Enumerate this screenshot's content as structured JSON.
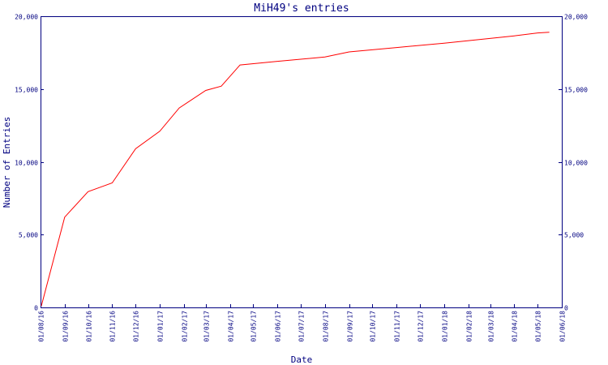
{
  "chart_data": {
    "type": "line",
    "title": "MiH49's entries",
    "xlabel": "Date",
    "ylabel": "Number of Entries",
    "ylim": [
      0,
      20000
    ],
    "xlim": [
      "2016-08-01",
      "2018-06-01"
    ],
    "grid": false,
    "y_ticks": [
      {
        "value": 0,
        "label": "0"
      },
      {
        "value": 5000,
        "label": "5,000"
      },
      {
        "value": 10000,
        "label": "10,000"
      },
      {
        "value": 15000,
        "label": "15,000"
      },
      {
        "value": 20000,
        "label": "20,000"
      }
    ],
    "x_ticks": [
      {
        "date": "2016-08-01",
        "label": "01/08/16"
      },
      {
        "date": "2016-09-01",
        "label": "01/09/16"
      },
      {
        "date": "2016-10-01",
        "label": "01/10/16"
      },
      {
        "date": "2016-11-01",
        "label": "01/11/16"
      },
      {
        "date": "2016-12-01",
        "label": "01/12/16"
      },
      {
        "date": "2017-01-01",
        "label": "01/01/17"
      },
      {
        "date": "2017-02-01",
        "label": "01/02/17"
      },
      {
        "date": "2017-03-01",
        "label": "01/03/17"
      },
      {
        "date": "2017-04-01",
        "label": "01/04/17"
      },
      {
        "date": "2017-05-01",
        "label": "01/05/17"
      },
      {
        "date": "2017-06-01",
        "label": "01/06/17"
      },
      {
        "date": "2017-07-01",
        "label": "01/07/17"
      },
      {
        "date": "2017-08-01",
        "label": "01/08/17"
      },
      {
        "date": "2017-09-01",
        "label": "01/09/17"
      },
      {
        "date": "2017-10-01",
        "label": "01/10/17"
      },
      {
        "date": "2017-11-01",
        "label": "01/11/17"
      },
      {
        "date": "2017-12-01",
        "label": "01/12/17"
      },
      {
        "date": "2018-01-01",
        "label": "01/01/18"
      },
      {
        "date": "2018-02-01",
        "label": "01/02/18"
      },
      {
        "date": "2018-03-01",
        "label": "01/03/18"
      },
      {
        "date": "2018-04-01",
        "label": "01/04/18"
      },
      {
        "date": "2018-05-01",
        "label": "01/05/18"
      },
      {
        "date": "2018-06-01",
        "label": "01/06/18"
      }
    ],
    "series": [
      {
        "color": "#ff0000",
        "points": [
          {
            "x": "2016-08-02",
            "y": 100
          },
          {
            "x": "2016-09-01",
            "y": 6200
          },
          {
            "x": "2016-10-01",
            "y": 7950
          },
          {
            "x": "2016-11-01",
            "y": 8550
          },
          {
            "x": "2016-12-01",
            "y": 10900
          },
          {
            "x": "2017-01-01",
            "y": 12100
          },
          {
            "x": "2017-01-26",
            "y": 13700
          },
          {
            "x": "2017-03-01",
            "y": 14900
          },
          {
            "x": "2017-03-21",
            "y": 15200
          },
          {
            "x": "2017-04-14",
            "y": 16650
          },
          {
            "x": "2017-06-01",
            "y": 16900
          },
          {
            "x": "2017-08-01",
            "y": 17200
          },
          {
            "x": "2017-09-01",
            "y": 17550
          },
          {
            "x": "2017-11-01",
            "y": 17850
          },
          {
            "x": "2018-01-01",
            "y": 18150
          },
          {
            "x": "2018-04-01",
            "y": 18650
          },
          {
            "x": "2018-05-01",
            "y": 18850
          },
          {
            "x": "2018-05-16",
            "y": 18900
          }
        ]
      }
    ]
  }
}
